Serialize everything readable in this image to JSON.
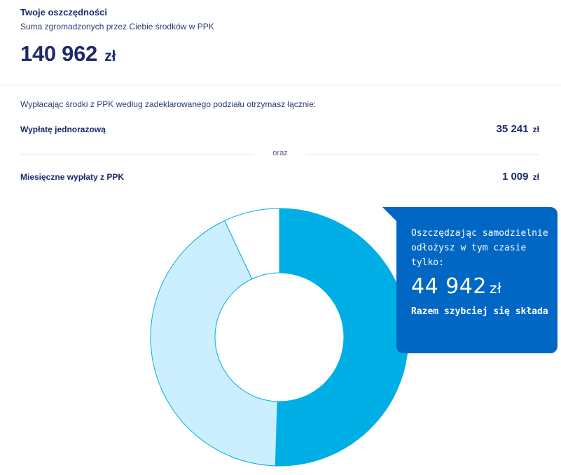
{
  "savings": {
    "title": "Twoje oszczędności",
    "subtitle": "Suma zgromadzonych przez Ciebie środków w PPK",
    "total_value": "140 962",
    "total_unit": "zł"
  },
  "payout": {
    "intro": "Wypłacając środki z PPK według zadeklarowanego podziału otrzymasz łącznie:",
    "lump_sum_label": "Wypłatę jednorazową",
    "lump_sum_value": "35 241",
    "lump_sum_unit": "zł",
    "separator": "oraz",
    "monthly_label": "Miesięczne wypłaty z PPK",
    "monthly_value": "1 009",
    "monthly_unit": "zł"
  },
  "callout": {
    "text": "Oszczędzając samodzielnie odłożysz w tym czasie tylko:",
    "amount_value": "44 942",
    "amount_unit": "zł",
    "footer": "Razem szybciej się składa"
  },
  "colors": {
    "navy": "#1f2a6d",
    "accent_blue": "#00aee6",
    "light_blue": "#ccefff",
    "callout_blue": "#0068c4"
  },
  "chart_data": {
    "type": "pie",
    "variant": "donut",
    "slices": [
      {
        "value": 50.5,
        "color": "#00aee6"
      },
      {
        "value": 42.5,
        "color": "#ccefff"
      },
      {
        "value": 7.0,
        "color": "#ffffff"
      }
    ],
    "start_angle_deg": 0,
    "direction": "clockwise",
    "outline_color": "#00aee6"
  }
}
